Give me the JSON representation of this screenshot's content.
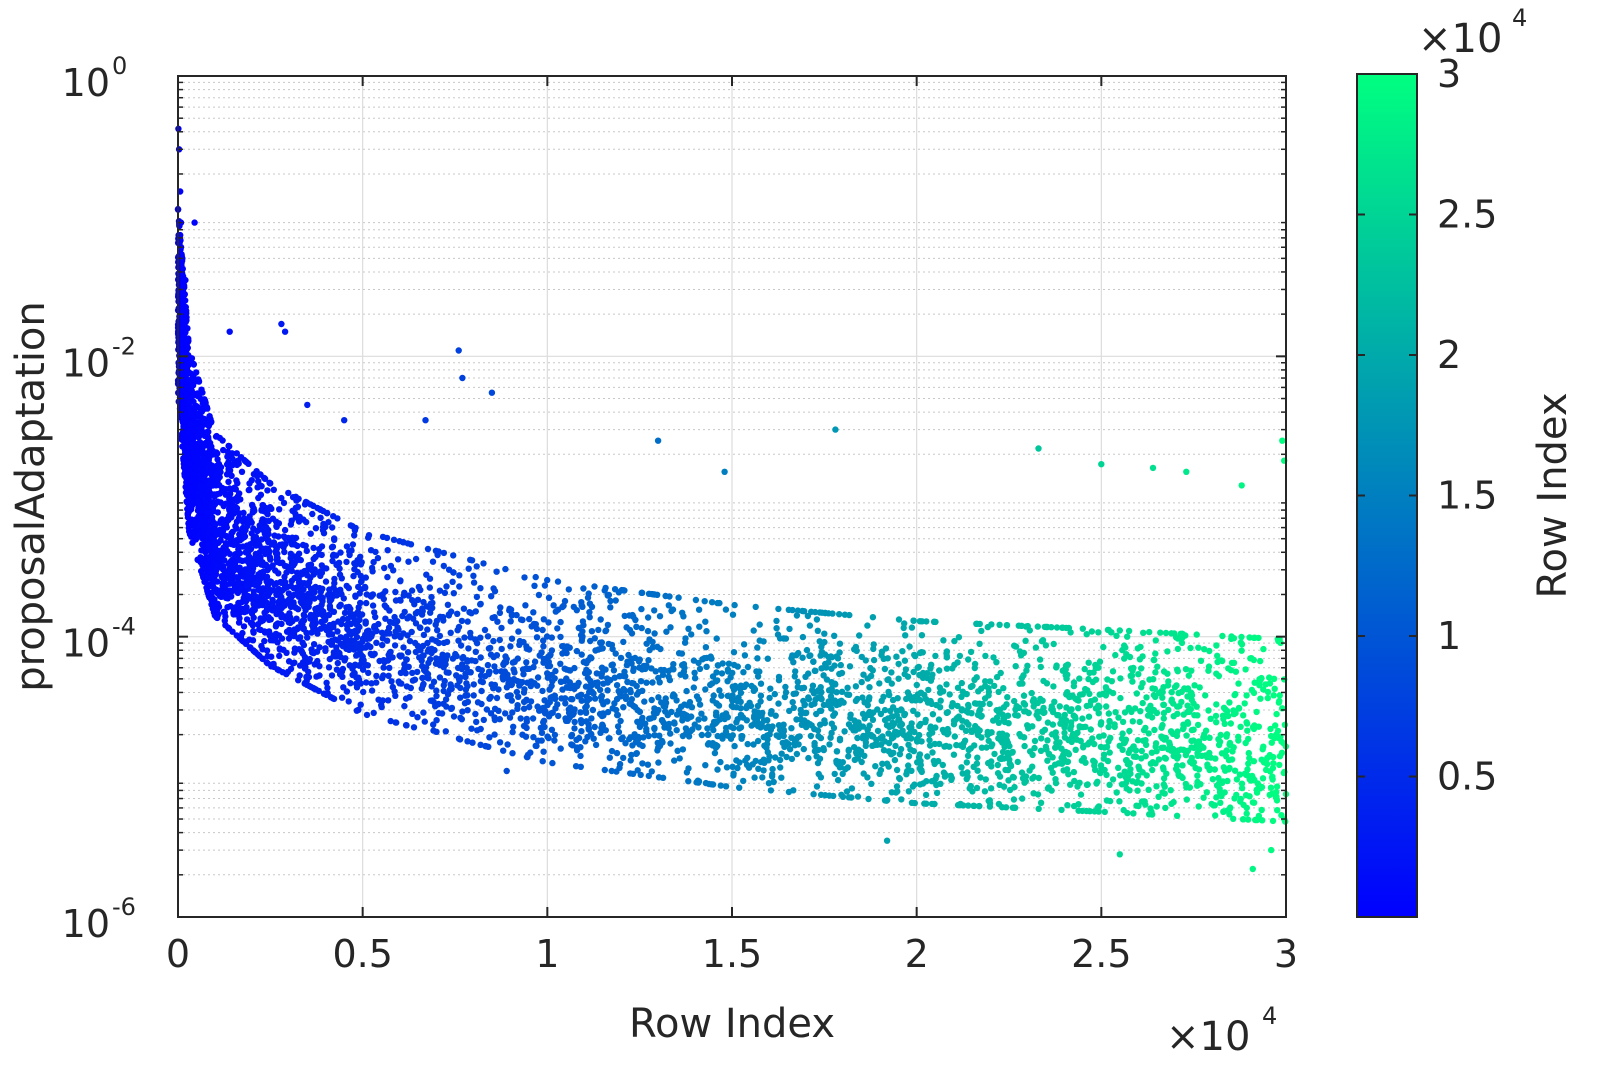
{
  "chart_data": {
    "type": "scatter",
    "title": "",
    "xlabel": "Row Index",
    "ylabel": "proposalAdaptation",
    "x_scale": "linear",
    "y_scale": "log",
    "xlim": [
      0,
      30000
    ],
    "ylim": [
      1e-06,
      1
    ],
    "x_multiplier": "×10",
    "x_multiplier_exp": "4",
    "x_ticks": [
      0,
      5000,
      10000,
      15000,
      20000,
      25000,
      30000
    ],
    "x_tick_labels": [
      "0",
      "0.5",
      "1",
      "1.5",
      "2",
      "2.5",
      "3"
    ],
    "y_ticks": [
      1e-06,
      0.0001,
      0.01,
      1
    ],
    "y_tick_labels": [
      {
        "base": "10",
        "exp": "-6"
      },
      {
        "base": "10",
        "exp": "-4"
      },
      {
        "base": "10",
        "exp": "-2"
      },
      {
        "base": "10",
        "exp": "0"
      }
    ],
    "grid": true,
    "legend": "none",
    "colormap": {
      "name": "winter",
      "low_color": "#0000ff",
      "high_color": "#00ff80",
      "range": [
        1,
        30000
      ]
    },
    "colorbar": {
      "label": "Row Index",
      "multiplier": "×10",
      "multiplier_exp": "4",
      "ticks": [
        5000,
        10000,
        15000,
        20000,
        25000,
        30000
      ],
      "tick_labels": [
        "0.5",
        "1",
        "1.5",
        "2",
        "2.5",
        "3"
      ]
    },
    "series": [
      {
        "points_per_segment": 600,
        "trend": {
          "x": [
            1,
            300,
            1000,
            2500,
            5000,
            10000,
            15000,
            20000,
            25000,
            30000
          ],
          "y": [
            0.02,
            0.002,
            0.0005,
            0.00022,
            0.0001,
            4.5e-05,
            3e-05,
            2.3e-05,
            2e-05,
            1.7e-05
          ]
        },
        "scatter_decades": [
          -0.55,
          0.75
        ],
        "outliers": [
          {
            "x": 10,
            "y": 0.42
          },
          {
            "x": 30,
            "y": 0.3
          },
          {
            "x": 60,
            "y": 0.15
          },
          {
            "x": 80,
            "y": 0.09
          },
          {
            "x": 120,
            "y": 0.05
          },
          {
            "x": 200,
            "y": 0.035
          },
          {
            "x": 450,
            "y": 0.09
          },
          {
            "x": 1400,
            "y": 0.015
          },
          {
            "x": 2800,
            "y": 0.017
          },
          {
            "x": 2900,
            "y": 0.015
          },
          {
            "x": 3500,
            "y": 0.0045
          },
          {
            "x": 4500,
            "y": 0.0035
          },
          {
            "x": 7600,
            "y": 0.011
          },
          {
            "x": 7700,
            "y": 0.007
          },
          {
            "x": 6700,
            "y": 0.0035
          },
          {
            "x": 8500,
            "y": 0.0055
          },
          {
            "x": 13000,
            "y": 0.0025
          },
          {
            "x": 14800,
            "y": 0.0015
          },
          {
            "x": 17800,
            "y": 0.003
          },
          {
            "x": 23300,
            "y": 0.0022
          },
          {
            "x": 25000,
            "y": 0.0017
          },
          {
            "x": 26400,
            "y": 0.0016
          },
          {
            "x": 27300,
            "y": 0.0015
          },
          {
            "x": 28800,
            "y": 0.0012
          },
          {
            "x": 29900,
            "y": 0.0025
          },
          {
            "x": 29950,
            "y": 0.0018
          },
          {
            "x": 19200,
            "y": 3.5e-06
          },
          {
            "x": 25500,
            "y": 2.8e-06
          },
          {
            "x": 29100,
            "y": 2.2e-06
          },
          {
            "x": 29600,
            "y": 3e-06
          },
          {
            "x": 16000,
            "y": 9e-06
          },
          {
            "x": 8900,
            "y": 1.1e-05
          }
        ]
      }
    ]
  }
}
